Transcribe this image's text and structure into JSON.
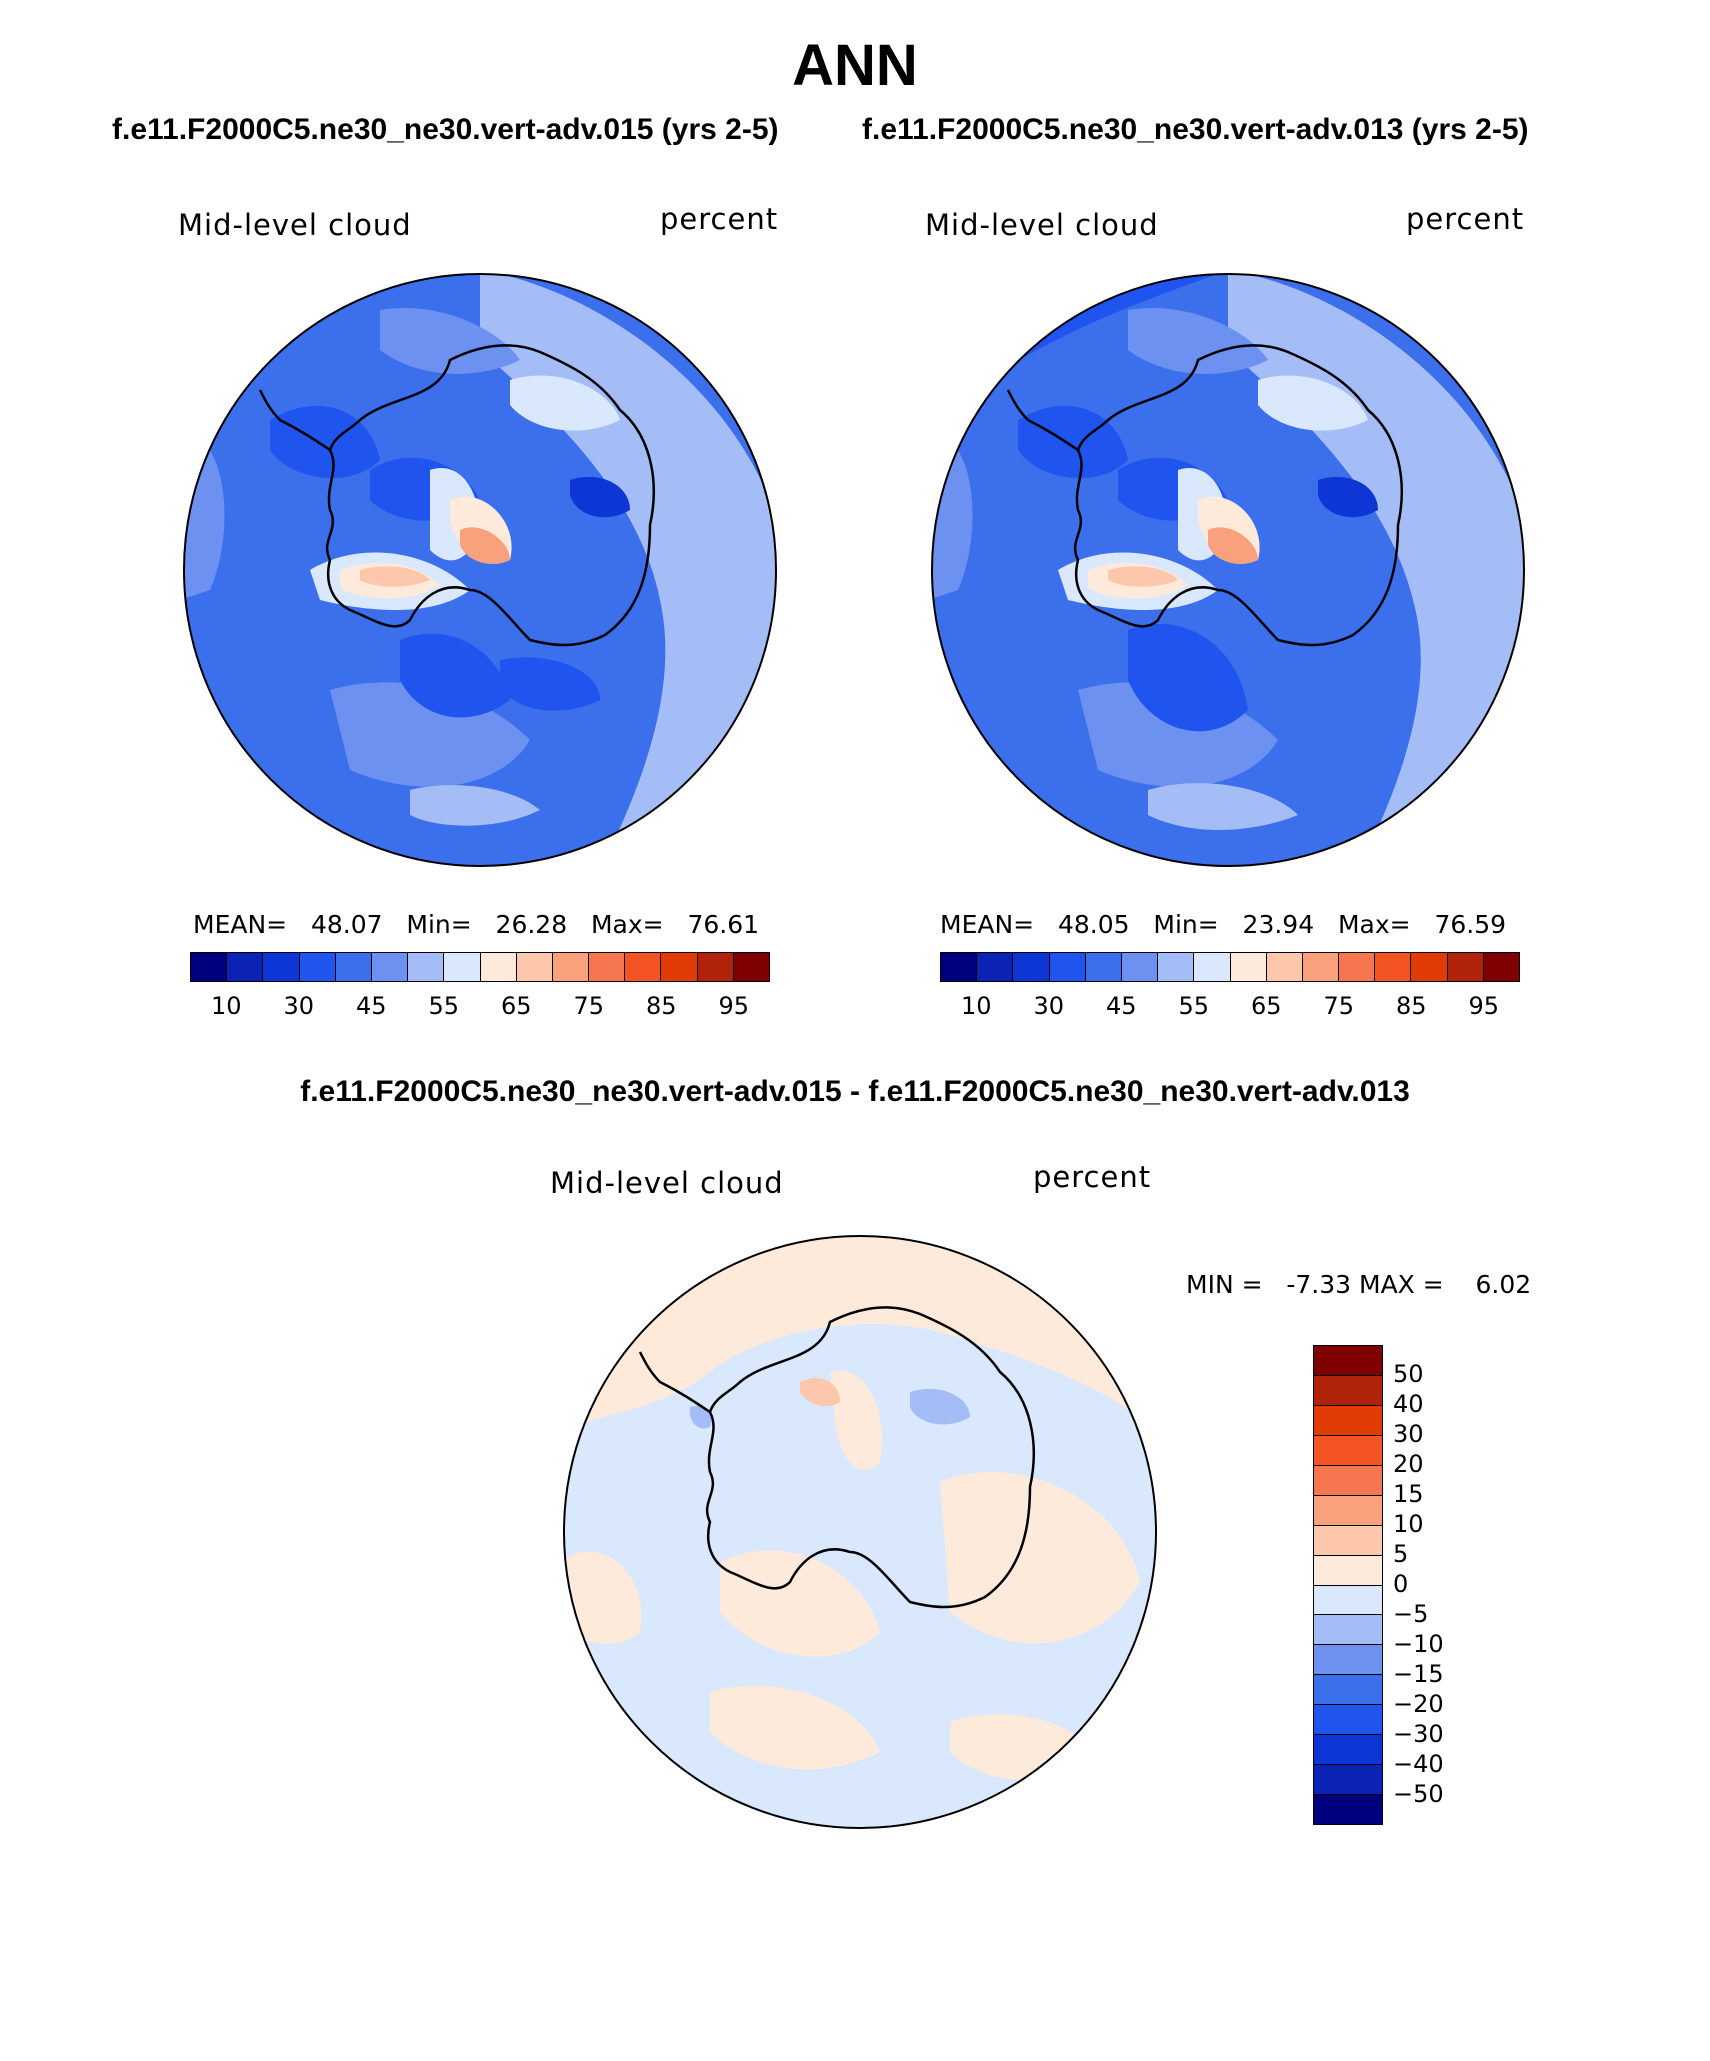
{
  "figure": {
    "title": "ANN",
    "subtitle_left": "f.e11.F2000C5.ne30_ne30.vert-adv.015 (yrs 2-5)",
    "subtitle_right": "f.e11.F2000C5.ne30_ne30.vert-adv.013 (yrs 2-5)",
    "diff_title": "f.e11.F2000C5.ne30_ne30.vert-adv.015 - f.e11.F2000C5.ne30_ne30.vert-adv.013"
  },
  "chart_data": [
    {
      "type": "heatmap",
      "projection": "south-polar-stereographic",
      "variable": "Mid-level cloud",
      "units": "percent",
      "case": "f.e11.F2000C5.ne30_ne30.vert-adv.015 (yrs 2-5)",
      "mean_label": "MEAN=",
      "mean": "48.07",
      "min_label": "Min=",
      "min": "26.28",
      "max_label": "Max=",
      "max": "76.61",
      "colorbar_ticks": [
        "10",
        "30",
        "45",
        "55",
        "65",
        "75",
        "85",
        "95"
      ],
      "colorbar_colors": [
        "#00007f",
        "#0b23b4",
        "#0e36d6",
        "#1f55ee",
        "#3c6fec",
        "#6d91f0",
        "#a4bdf7",
        "#d9e8fd",
        "#fdeadb",
        "#fcc7aa",
        "#f9a07d",
        "#f67650",
        "#f35422",
        "#e23b06",
        "#b0230a",
        "#7e0000"
      ]
    },
    {
      "type": "heatmap",
      "projection": "south-polar-stereographic",
      "variable": "Mid-level cloud",
      "units": "percent",
      "case": "f.e11.F2000C5.ne30_ne30.vert-adv.013 (yrs 2-5)",
      "mean_label": "MEAN=",
      "mean": "48.05",
      "min_label": "Min=",
      "min": "23.94",
      "max_label": "Max=",
      "max": "76.59",
      "colorbar_ticks": [
        "10",
        "30",
        "45",
        "55",
        "65",
        "75",
        "85",
        "95"
      ],
      "colorbar_colors": [
        "#00007f",
        "#0b23b4",
        "#0e36d6",
        "#1f55ee",
        "#3c6fec",
        "#6d91f0",
        "#a4bdf7",
        "#d9e8fd",
        "#fdeadb",
        "#fcc7aa",
        "#f9a07d",
        "#f67650",
        "#f35422",
        "#e23b06",
        "#b0230a",
        "#7e0000"
      ]
    },
    {
      "type": "heatmap",
      "projection": "south-polar-stereographic",
      "variable": "Mid-level cloud",
      "units": "percent",
      "case": "f.e11.F2000C5.ne30_ne30.vert-adv.015 - f.e11.F2000C5.ne30_ne30.vert-adv.013",
      "minmax_text": "MIN =   -7.33 MAX =    6.02",
      "min": -7.33,
      "max": 6.02,
      "colorbar_ticks": [
        "50",
        "40",
        "30",
        "20",
        "15",
        "10",
        "5",
        "0",
        "-5",
        "-10",
        "-15",
        "-20",
        "-30",
        "-40",
        "-50"
      ],
      "colorbar_tick_labels": [
        "50",
        "40",
        "30",
        "20",
        "15",
        "10",
        "5",
        "0",
        "−5",
        "−10",
        "−15",
        "−20",
        "−30",
        "−40",
        "−50"
      ],
      "colorbar_colors": [
        "#7e0000",
        "#b0230a",
        "#e23b06",
        "#f35422",
        "#f67650",
        "#f9a07d",
        "#fcc7aa",
        "#fdeadb",
        "#d9e8fd",
        "#a4bdf7",
        "#6d91f0",
        "#3c6fec",
        "#1f55ee",
        "#0e36d6",
        "#0b23b4",
        "#00007f"
      ]
    }
  ]
}
